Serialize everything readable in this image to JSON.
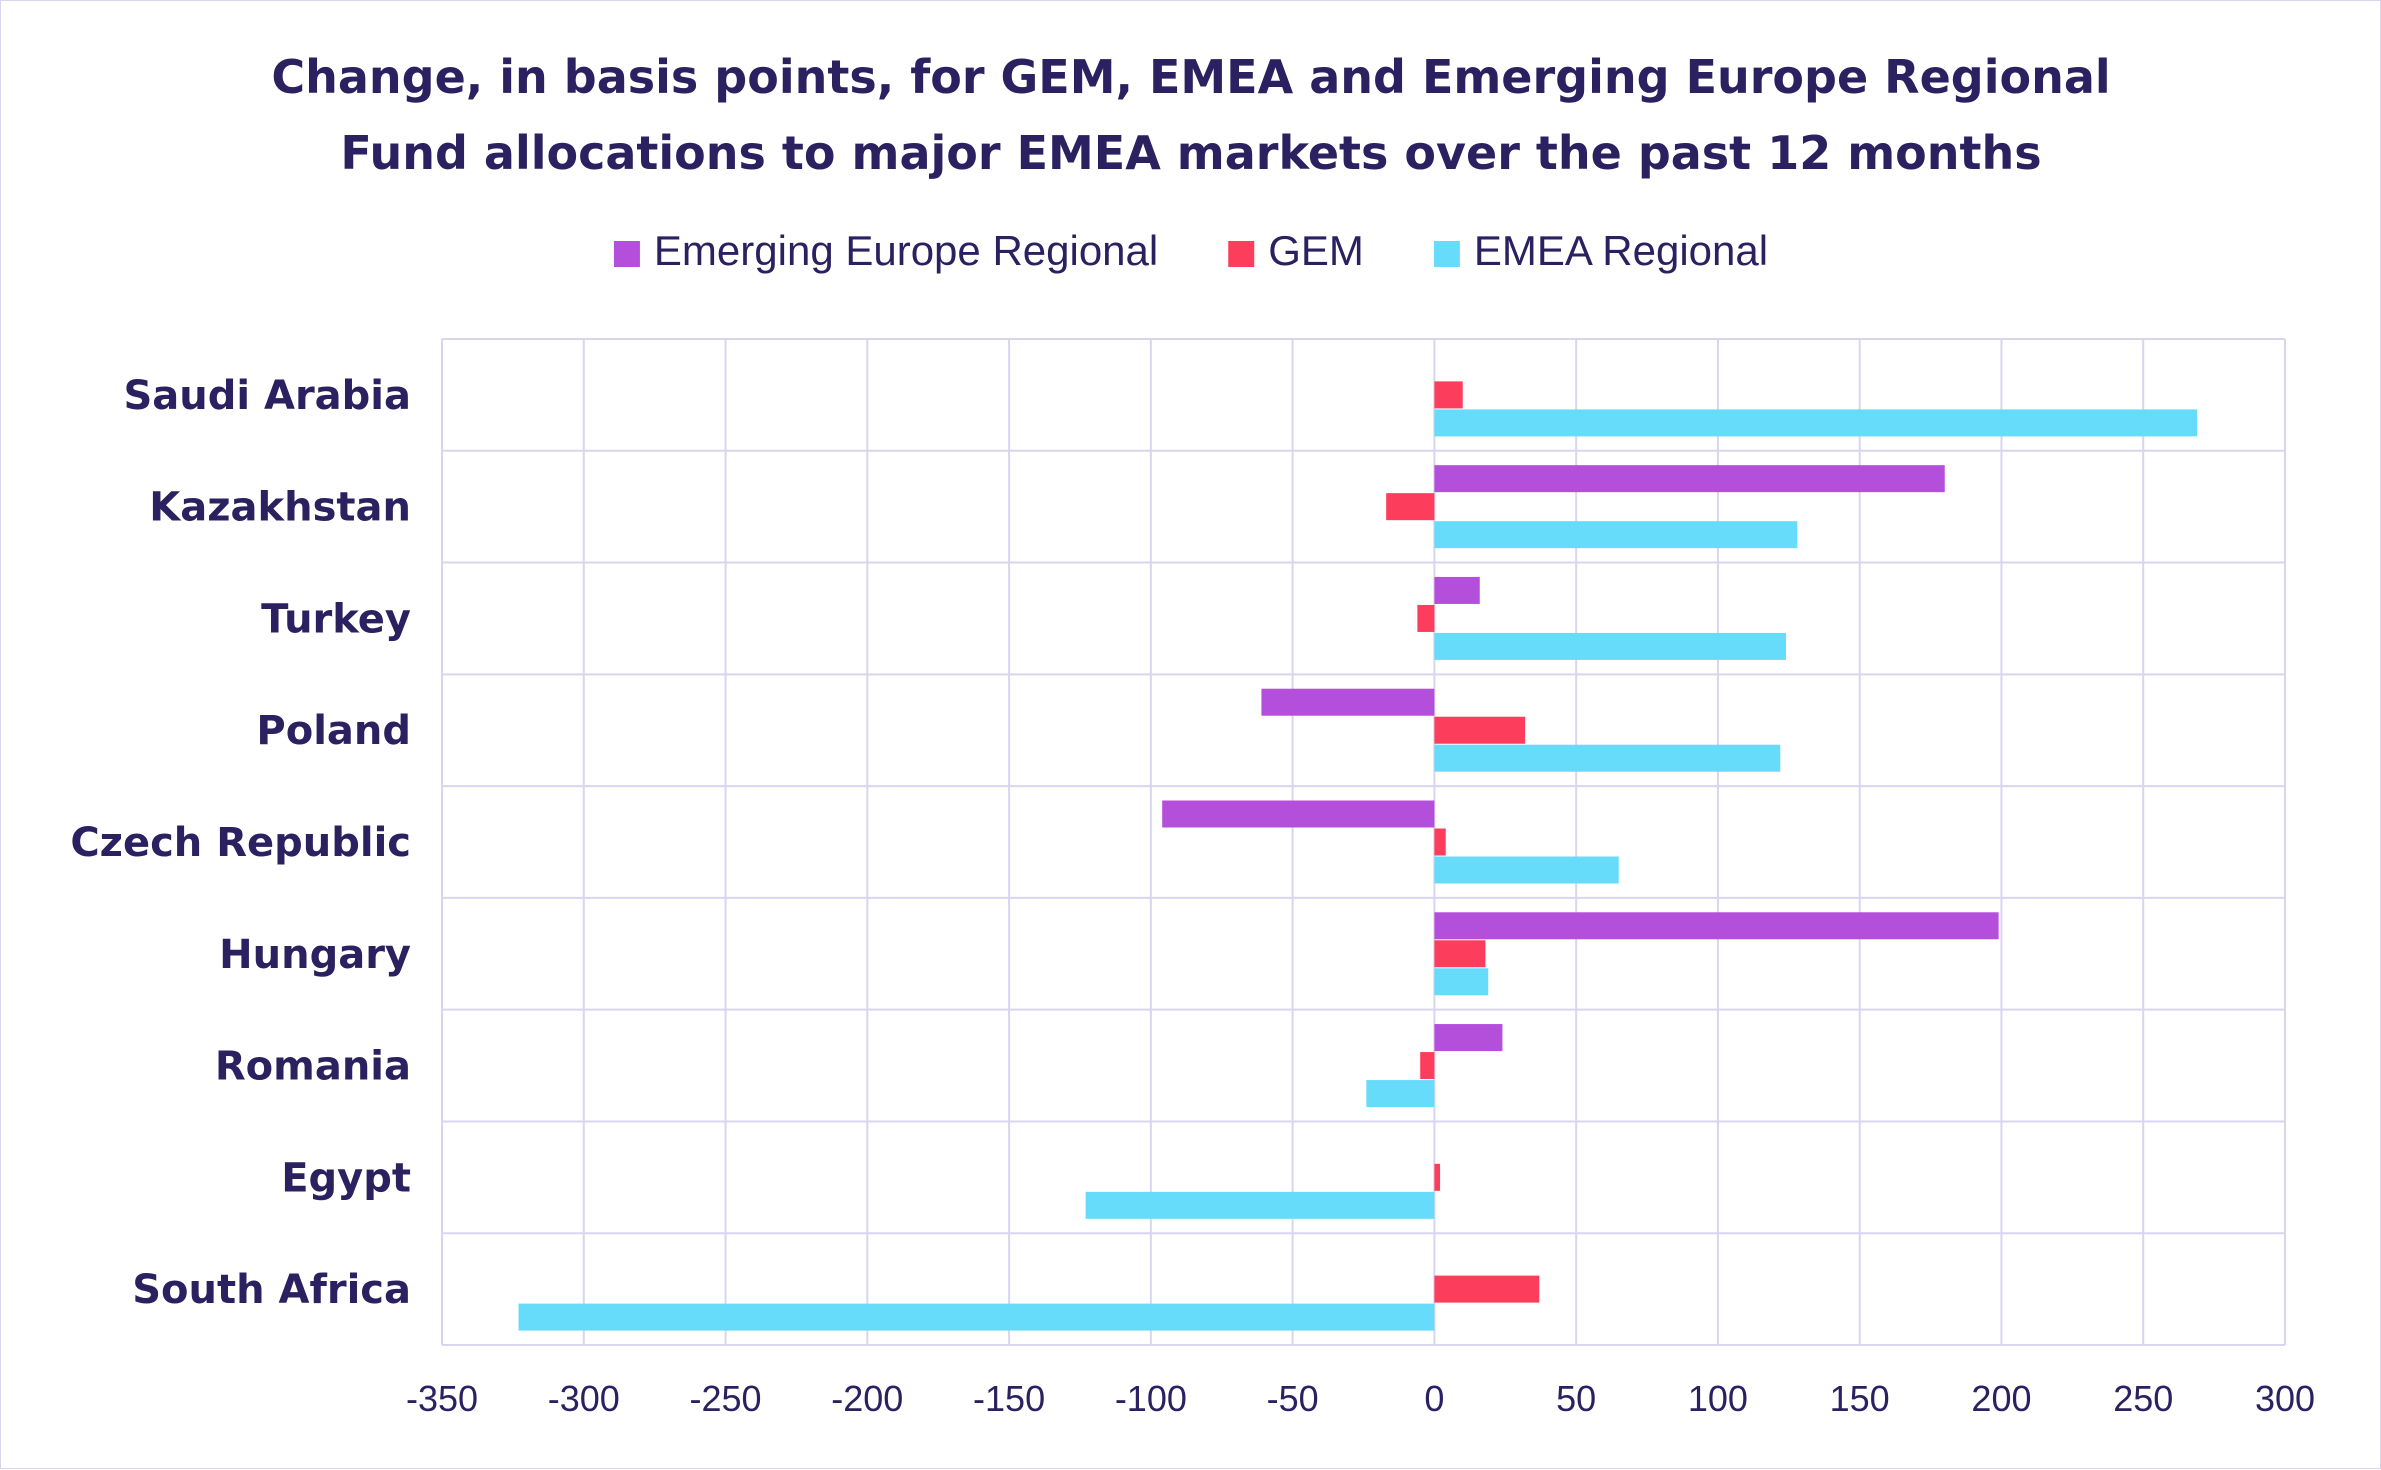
{
  "chart_data": {
    "type": "bar",
    "orientation": "horizontal",
    "title": "Change, in basis points, for GEM, EMEA and Emerging Europe Regional",
    "subtitle": "Fund allocations to major EMEA markets over the past 12 months",
    "xlabel": "",
    "ylabel": "",
    "xlim": [
      -350,
      300
    ],
    "x_ticks": [
      -350,
      -300,
      -250,
      -200,
      -150,
      -100,
      -50,
      0,
      50,
      100,
      150,
      200,
      250,
      300
    ],
    "x_tick_labels": [
      "-350",
      "-300",
      "-250",
      "-200",
      "-150",
      "-100",
      "-50",
      "0",
      "50",
      "100",
      "150",
      "200",
      "250",
      "300"
    ],
    "grid": true,
    "legend_position": "top",
    "categories": [
      "Saudi Arabia",
      "Kazakhstan",
      "Turkey",
      "Poland",
      "Czech Republic",
      "Hungary",
      "Romania",
      "Egypt",
      "South Africa"
    ],
    "series": [
      {
        "name": "Emerging Europe Regional",
        "color": "#b44fdc",
        "values": [
          0,
          180,
          16,
          -61,
          -96,
          199,
          24,
          0,
          0
        ]
      },
      {
        "name": "GEM",
        "color": "#fd3d5c",
        "values": [
          10,
          -17,
          -6,
          32,
          4,
          18,
          -5,
          2,
          37
        ]
      },
      {
        "name": "EMEA Regional",
        "color": "#67dcfa",
        "values": [
          269,
          128,
          124,
          122,
          65,
          19,
          -24,
          -123,
          -323
        ]
      }
    ]
  }
}
